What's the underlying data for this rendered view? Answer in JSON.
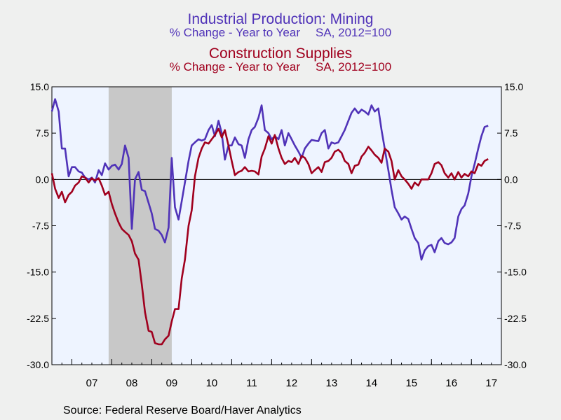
{
  "chart_data": {
    "type": "line",
    "title": "Industrial Production: Mining",
    "subtitle": "% Change - Year to Year",
    "subtitle_note": "SA, 2012=100",
    "title2": "Construction Supplies",
    "subtitle2": "% Change - Year to Year",
    "subtitle2_note": "SA, 2012=100",
    "source": "Source:  Federal Reserve Board/Haver Analytics",
    "x_categories": [
      "07",
      "08",
      "09",
      "10",
      "11",
      "12",
      "13",
      "14",
      "15",
      "16",
      "17"
    ],
    "xlim": [
      2006.5,
      2017.75
    ],
    "ylim": [
      -30,
      15
    ],
    "yticks": [
      "15.0",
      "7.5",
      "0.0",
      "-7.5",
      "-15.0",
      "-22.5",
      "-30.0"
    ],
    "ytick_values": [
      15,
      7.5,
      0,
      -7.5,
      -15,
      -22.5,
      -30
    ],
    "recession": [
      2007.92,
      2009.5
    ],
    "grid": false,
    "colors": {
      "mining": "#5033b8",
      "construction": "#a0001e",
      "plot_bg": "#eef4ff",
      "recession": "#c8c8c8",
      "page_bg": "#eff0ef"
    },
    "series": [
      {
        "key": "mining",
        "x": [
          2006.5,
          2006.58,
          2006.67,
          2006.75,
          2006.83,
          2006.92,
          2007.0,
          2007.08,
          2007.17,
          2007.25,
          2007.33,
          2007.42,
          2007.5,
          2007.58,
          2007.67,
          2007.75,
          2007.83,
          2007.92,
          2008.0,
          2008.08,
          2008.17,
          2008.25,
          2008.33,
          2008.42,
          2008.5,
          2008.58,
          2008.67,
          2008.75,
          2008.83,
          2008.92,
          2009.0,
          2009.08,
          2009.17,
          2009.25,
          2009.33,
          2009.42,
          2009.5,
          2009.58,
          2009.67,
          2009.75,
          2009.83,
          2009.92,
          2010.0,
          2010.08,
          2010.17,
          2010.25,
          2010.33,
          2010.42,
          2010.5,
          2010.58,
          2010.67,
          2010.75,
          2010.83,
          2010.92,
          2011.0,
          2011.08,
          2011.17,
          2011.25,
          2011.33,
          2011.42,
          2011.5,
          2011.58,
          2011.67,
          2011.75,
          2011.83,
          2011.92,
          2012.0,
          2012.08,
          2012.17,
          2012.25,
          2012.33,
          2012.42,
          2012.5,
          2012.58,
          2012.67,
          2012.75,
          2012.83,
          2012.92,
          2013.0,
          2013.08,
          2013.17,
          2013.25,
          2013.33,
          2013.42,
          2013.5,
          2013.58,
          2013.67,
          2013.75,
          2013.83,
          2013.92,
          2014.0,
          2014.08,
          2014.17,
          2014.25,
          2014.33,
          2014.42,
          2014.5,
          2014.58,
          2014.67,
          2014.75,
          2014.83,
          2014.92,
          2015.0,
          2015.08,
          2015.17,
          2015.25,
          2015.33,
          2015.42,
          2015.5,
          2015.58,
          2015.67,
          2015.75,
          2015.83,
          2015.92,
          2016.0,
          2016.08,
          2016.17,
          2016.25,
          2016.33,
          2016.42,
          2016.5,
          2016.58,
          2016.67,
          2016.75,
          2016.83,
          2016.92,
          2017.0,
          2017.08,
          2017.17,
          2017.25,
          2017.33,
          2017.42
        ],
        "values": [
          11.0,
          13.0,
          11.0,
          5.0,
          5.0,
          0.5,
          2.0,
          2.0,
          1.3,
          1.1,
          0.3,
          0.0,
          0.3,
          -0.5,
          1.5,
          0.7,
          2.6,
          1.6,
          2.2,
          2.4,
          1.6,
          2.5,
          5.5,
          3.5,
          -8.0,
          0.0,
          1.2,
          -1.7,
          -1.9,
          -3.8,
          -5.5,
          -8.0,
          -8.3,
          -9.0,
          -10.2,
          -7.8,
          3.5,
          -4.5,
          -6.5,
          -3.5,
          -0.5,
          3.0,
          5.5,
          6.0,
          6.5,
          6.3,
          6.5,
          8.0,
          8.8,
          7.0,
          9.5,
          7.5,
          3.2,
          5.5,
          5.5,
          6.8,
          5.7,
          5.5,
          3.5,
          6.5,
          8.0,
          8.5,
          10.0,
          12.0,
          8.0,
          7.5,
          6.5,
          7.0,
          6.5,
          8.0,
          5.5,
          7.5,
          6.5,
          5.5,
          4.5,
          3.5,
          5.0,
          5.8,
          6.4,
          6.3,
          6.2,
          7.5,
          8.0,
          5.0,
          6.0,
          5.8,
          6.0,
          7.0,
          8.0,
          9.5,
          10.8,
          11.5,
          10.7,
          11.3,
          11.0,
          10.5,
          12.0,
          11.0,
          11.5,
          8.0,
          5.0,
          1.5,
          -1.7,
          -4.5,
          -5.5,
          -6.5,
          -6.0,
          -6.4,
          -8.0,
          -9.5,
          -10.3,
          -13.0,
          -11.5,
          -10.8,
          -10.6,
          -11.8,
          -10.0,
          -9.5,
          -10.3,
          -10.5,
          -10.2,
          -9.5,
          -6.0,
          -4.8,
          -4.2,
          -2.3,
          0.5,
          2.5,
          5.0,
          7.0,
          8.5,
          8.7
        ],
        "_note": ""
      },
      {
        "key": "construction",
        "x": [
          2006.5,
          2006.58,
          2006.67,
          2006.75,
          2006.83,
          2006.92,
          2007.0,
          2007.08,
          2007.17,
          2007.25,
          2007.33,
          2007.42,
          2007.5,
          2007.58,
          2007.67,
          2007.75,
          2007.83,
          2007.92,
          2008.0,
          2008.08,
          2008.17,
          2008.25,
          2008.33,
          2008.42,
          2008.5,
          2008.58,
          2008.67,
          2008.75,
          2008.83,
          2008.92,
          2009.0,
          2009.08,
          2009.17,
          2009.25,
          2009.33,
          2009.42,
          2009.5,
          2009.58,
          2009.67,
          2009.75,
          2009.83,
          2009.92,
          2010.0,
          2010.08,
          2010.17,
          2010.25,
          2010.33,
          2010.42,
          2010.5,
          2010.58,
          2010.67,
          2010.75,
          2010.83,
          2010.92,
          2011.0,
          2011.08,
          2011.17,
          2011.25,
          2011.33,
          2011.42,
          2011.5,
          2011.58,
          2011.67,
          2011.75,
          2011.83,
          2011.92,
          2012.0,
          2012.08,
          2012.17,
          2012.25,
          2012.33,
          2012.42,
          2012.5,
          2012.58,
          2012.67,
          2012.75,
          2012.83,
          2012.92,
          2013.0,
          2013.08,
          2013.17,
          2013.25,
          2013.33,
          2013.42,
          2013.5,
          2013.58,
          2013.67,
          2013.75,
          2013.83,
          2013.92,
          2014.0,
          2014.08,
          2014.17,
          2014.25,
          2014.33,
          2014.42,
          2014.5,
          2014.58,
          2014.67,
          2014.75,
          2014.83,
          2014.92,
          2015.0,
          2015.08,
          2015.17,
          2015.25,
          2015.33,
          2015.42,
          2015.5,
          2015.58,
          2015.67,
          2015.75,
          2015.83,
          2015.92,
          2016.0,
          2016.08,
          2016.17,
          2016.25,
          2016.33,
          2016.42,
          2016.5,
          2016.58,
          2016.67,
          2016.75,
          2016.83,
          2016.92,
          2017.0,
          2017.08,
          2017.17,
          2017.25,
          2017.33,
          2017.42
        ],
        "values": [
          1.0,
          -1.5,
          -3.0,
          -2.0,
          -3.7,
          -2.5,
          -2.0,
          -1.0,
          -0.5,
          0.5,
          0.3,
          -0.5,
          0.2,
          -0.2,
          0.2,
          -1.0,
          -2.5,
          -2.0,
          -4.0,
          -5.5,
          -7.0,
          -8.0,
          -8.5,
          -9.0,
          -10.0,
          -12.0,
          -13.0,
          -17.0,
          -21.5,
          -24.5,
          -24.7,
          -26.5,
          -26.7,
          -26.7,
          -25.9,
          -25.3,
          -23.0,
          -21.0,
          -21.0,
          -16.0,
          -13.0,
          -7.5,
          -5.0,
          0.5,
          3.5,
          5.0,
          6.0,
          5.8,
          6.5,
          7.2,
          8.2,
          6.8,
          8.0,
          5.5,
          3.0,
          0.7,
          1.2,
          1.4,
          2.0,
          1.3,
          1.4,
          1.3,
          0.8,
          3.7,
          5.0,
          7.0,
          5.8,
          7.2,
          5.0,
          3.5,
          2.5,
          3.0,
          2.8,
          3.5,
          2.5,
          3.8,
          3.5,
          2.5,
          1.0,
          1.5,
          2.0,
          1.2,
          2.8,
          3.0,
          3.5,
          4.5,
          4.8,
          4.3,
          3.0,
          2.5,
          1.0,
          2.2,
          2.4,
          3.7,
          4.3,
          5.3,
          4.7,
          4.0,
          3.5,
          2.7,
          5.0,
          4.5,
          3.0,
          0.0,
          1.5,
          0.5,
          0.0,
          -0.7,
          -1.5,
          -0.5,
          -1.0,
          0.0,
          0.0,
          0.0,
          1.0,
          2.5,
          2.8,
          2.3,
          1.0,
          0.3,
          1.0,
          0.0,
          1.2,
          0.3,
          0.9,
          0.5,
          1.3,
          1.0,
          2.5,
          2.2,
          3.0,
          3.3
        ],
        "_note": ""
      }
    ]
  }
}
